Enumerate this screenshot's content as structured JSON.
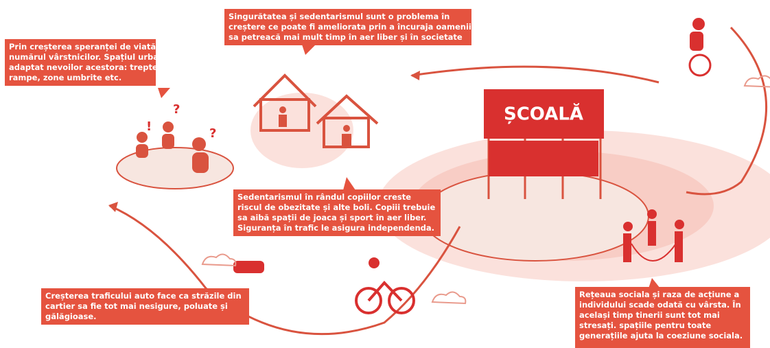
{
  "boxes": {
    "loneliness": {
      "lines": [
        "Singurătatea și sedentarismul sunt o problema în",
        "creștere ce poate fi ameliorata prin a încuraja oamenii",
        "sa petreacă mai mult timp în aer liber și în societate"
      ]
    },
    "elderly": {
      "lines": [
        "Prin creșterea speranței de viată creste",
        "numărul vârstnicilor. Spațiul urban trebuie",
        "adaptat nevoilor acestora: trepte, bănci,",
        "rampe, zone umbrite etc."
      ]
    },
    "children": {
      "lines": [
        "Sedentarismul în rândul copiilor creste",
        "riscul de obezitate și alte boli. Copiii trebuie",
        "sa aibă spații de joaca și sport în aer liber.",
        "Siguranța în trafic le asigura independenda."
      ]
    },
    "traffic": {
      "lines": [
        "Creșterea traficului auto face ca străzile din",
        "cartier sa fie tot mai nesigure, poluate și",
        "gălăgioase."
      ]
    },
    "network": {
      "lines": [
        "Rețeaua sociala și raza de acțiune a",
        "individului scade odată cu vârsta. În",
        "același timp tinerii sunt tot mai",
        "stresați. spațiile pentru toate",
        "generațiile ajuta la coeziune sociala."
      ]
    }
  },
  "school_sign": "ȘCOALĂ",
  "marks": [
    "!",
    "?",
    "?"
  ]
}
